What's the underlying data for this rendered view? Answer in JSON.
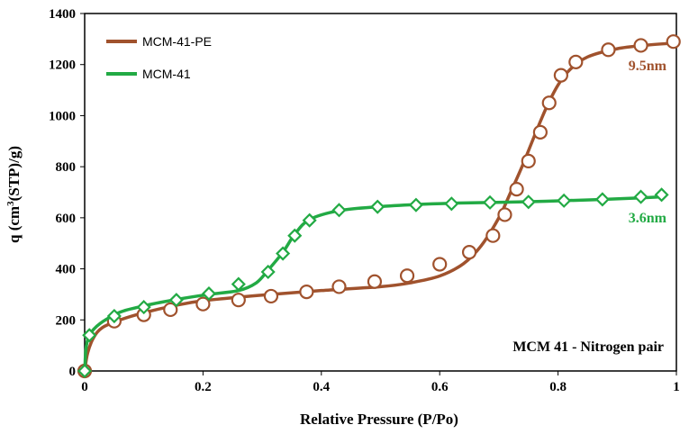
{
  "chart_data": {
    "type": "line",
    "xlabel": "Relative Pressure (P/Po)",
    "ylabel_main": "q (cm",
    "ylabel_sup": "3",
    "ylabel_rest": "(STP)/g)",
    "xlim": [
      0,
      1
    ],
    "ylim": [
      0,
      1400
    ],
    "xticks": [
      0,
      0.2,
      0.4,
      0.6,
      0.8,
      1
    ],
    "xtick_labels": [
      "0",
      "0.2",
      "0.4",
      "0.6",
      "0.8",
      "1"
    ],
    "yticks": [
      0,
      200,
      400,
      600,
      800,
      1000,
      1200,
      1400
    ],
    "ytick_labels": [
      "0",
      "200",
      "400",
      "600",
      "800",
      "1000",
      "1200",
      "1400"
    ],
    "grid": false,
    "legend_position": "top-left",
    "box_label": "MCM 41 - Nitrogen pair",
    "series": [
      {
        "name": "MCM-41-PE",
        "color": "#a0522d",
        "marker": "circle",
        "annotation": "9.5nm",
        "markers": [
          [
            0.0,
            0
          ],
          [
            0.05,
            195
          ],
          [
            0.1,
            220
          ],
          [
            0.145,
            240
          ],
          [
            0.2,
            262
          ],
          [
            0.26,
            278
          ],
          [
            0.315,
            293
          ],
          [
            0.375,
            310
          ],
          [
            0.43,
            330
          ],
          [
            0.49,
            350
          ],
          [
            0.545,
            373
          ],
          [
            0.6,
            418
          ],
          [
            0.65,
            465
          ],
          [
            0.69,
            530
          ],
          [
            0.71,
            612
          ],
          [
            0.73,
            712
          ],
          [
            0.75,
            822
          ],
          [
            0.77,
            935
          ],
          [
            0.785,
            1050
          ],
          [
            0.805,
            1158
          ],
          [
            0.83,
            1210
          ],
          [
            0.885,
            1258
          ],
          [
            0.94,
            1275
          ],
          [
            0.995,
            1290
          ]
        ],
        "curve": [
          [
            0.0,
            0
          ],
          [
            0.005,
            70
          ],
          [
            0.015,
            130
          ],
          [
            0.03,
            170
          ],
          [
            0.06,
            200
          ],
          [
            0.1,
            228
          ],
          [
            0.15,
            255
          ],
          [
            0.2,
            275
          ],
          [
            0.3,
            297
          ],
          [
            0.4,
            315
          ],
          [
            0.5,
            330
          ],
          [
            0.55,
            345
          ],
          [
            0.6,
            372
          ],
          [
            0.64,
            420
          ],
          [
            0.67,
            490
          ],
          [
            0.7,
            600
          ],
          [
            0.72,
            700
          ],
          [
            0.74,
            805
          ],
          [
            0.76,
            920
          ],
          [
            0.78,
            1030
          ],
          [
            0.8,
            1120
          ],
          [
            0.82,
            1180
          ],
          [
            0.85,
            1230
          ],
          [
            0.9,
            1262
          ],
          [
            0.95,
            1276
          ],
          [
            1.0,
            1285
          ]
        ]
      },
      {
        "name": "MCM-41",
        "color": "#22aa44",
        "marker": "diamond",
        "annotation": "3.6nm",
        "markers": [
          [
            0.0,
            0
          ],
          [
            0.008,
            140
          ],
          [
            0.05,
            215
          ],
          [
            0.1,
            250
          ],
          [
            0.155,
            278
          ],
          [
            0.21,
            303
          ],
          [
            0.26,
            340
          ],
          [
            0.31,
            388
          ],
          [
            0.335,
            460
          ],
          [
            0.355,
            530
          ],
          [
            0.38,
            590
          ],
          [
            0.43,
            630
          ],
          [
            0.495,
            643
          ],
          [
            0.56,
            650
          ],
          [
            0.62,
            655
          ],
          [
            0.685,
            660
          ],
          [
            0.75,
            662
          ],
          [
            0.81,
            667
          ],
          [
            0.875,
            672
          ],
          [
            0.94,
            682
          ],
          [
            0.975,
            690
          ]
        ],
        "curve": [
          [
            0.0,
            0
          ],
          [
            0.008,
            140
          ],
          [
            0.05,
            220
          ],
          [
            0.1,
            255
          ],
          [
            0.155,
            280
          ],
          [
            0.21,
            300
          ],
          [
            0.26,
            315
          ],
          [
            0.29,
            345
          ],
          [
            0.31,
            395
          ],
          [
            0.335,
            465
          ],
          [
            0.355,
            535
          ],
          [
            0.38,
            593
          ],
          [
            0.43,
            628
          ],
          [
            0.495,
            643
          ],
          [
            0.56,
            652
          ],
          [
            0.62,
            657
          ],
          [
            0.685,
            660
          ],
          [
            0.75,
            663
          ],
          [
            0.81,
            667
          ],
          [
            0.875,
            672
          ],
          [
            0.94,
            678
          ],
          [
            0.975,
            682
          ]
        ]
      }
    ]
  }
}
